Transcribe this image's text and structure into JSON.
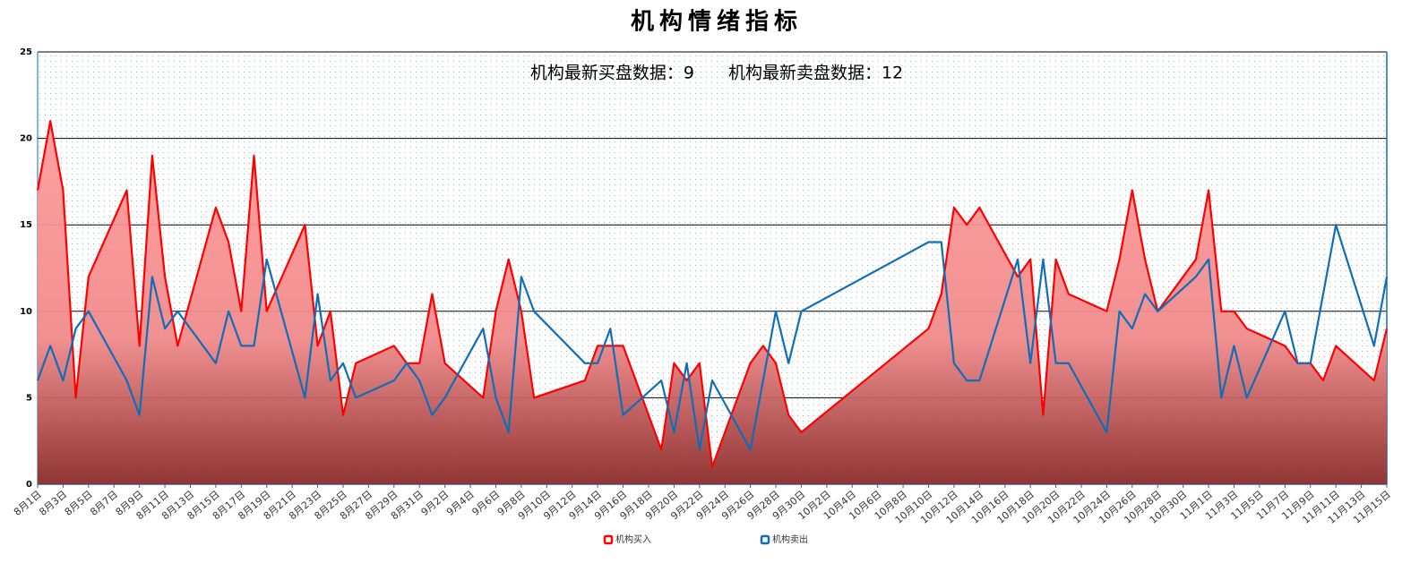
{
  "chart_data": {
    "type": "line",
    "title": "机构情绪指标",
    "subtitle": "机构最新买盘数据：9　　机构最新卖盘数据：12",
    "x": [
      "8月1日",
      "8月2日",
      "8月3日",
      "8月4日",
      "8月5日",
      "8月8日",
      "8月9日",
      "8月10日",
      "8月11日",
      "8月12日",
      "8月15日",
      "8月16日",
      "8月17日",
      "8月18日",
      "8月19日",
      "8月22日",
      "8月23日",
      "8月24日",
      "8月25日",
      "8月26日",
      "8月29日",
      "8月30日",
      "8月31日",
      "9月1日",
      "9月2日",
      "9月5日",
      "9月6日",
      "9月7日",
      "9月8日",
      "9月9日",
      "9月13日",
      "9月14日",
      "9月15日",
      "9月16日",
      "9月19日",
      "9月20日",
      "9月21日",
      "9月22日",
      "9月23日",
      "9月26日",
      "9月27日",
      "9月28日",
      "9月29日",
      "9月30日",
      "10月10日",
      "10月11日",
      "10月12日",
      "10月13日",
      "10月14日",
      "10月17日",
      "10月18日",
      "10月19日",
      "10月20日",
      "10月21日",
      "10月24日",
      "10月25日",
      "10月26日",
      "10月27日",
      "10月28日",
      "10月31日",
      "11月1日",
      "11月2日",
      "11月3日",
      "11月4日",
      "11月7日",
      "11月8日",
      "11月9日",
      "11月10日",
      "11月11日",
      "11月14日",
      "11月15日"
    ],
    "series": [
      {
        "name": "机构买入",
        "color": "#ff0000",
        "area": true,
        "values": [
          17,
          21,
          17,
          5,
          12,
          17,
          8,
          19,
          12,
          8,
          16,
          14,
          10,
          19,
          10,
          15,
          8,
          10,
          4,
          7,
          8,
          7,
          7,
          11,
          7,
          5,
          10,
          13,
          10,
          5,
          6,
          8,
          8,
          8,
          2,
          7,
          6,
          7,
          1,
          7,
          8,
          7,
          4,
          3,
          9,
          11,
          16,
          15,
          16,
          12,
          13,
          4,
          13,
          11,
          10,
          13,
          17,
          13,
          10,
          13,
          17,
          10,
          10,
          9,
          8,
          7,
          7,
          6,
          8,
          6,
          9
        ]
      },
      {
        "name": "机构卖出",
        "color": "#0e6eb8",
        "area": false,
        "values": [
          6,
          8,
          6,
          9,
          10,
          6,
          4,
          12,
          9,
          10,
          7,
          10,
          8,
          8,
          13,
          5,
          11,
          6,
          7,
          5,
          6,
          7,
          6,
          4,
          5,
          9,
          5,
          3,
          12,
          10,
          7,
          7,
          9,
          4,
          6,
          3,
          7,
          2,
          6,
          2,
          6,
          10,
          7,
          10,
          14,
          14,
          7,
          6,
          6,
          13,
          7,
          13,
          7,
          7,
          3,
          10,
          9,
          11,
          10,
          12,
          13,
          5,
          8,
          5,
          10,
          7,
          7,
          11,
          15,
          8,
          12
        ]
      }
    ],
    "xlim": [
      "8月1日",
      "11月15日"
    ],
    "xticks": [
      "8月1日",
      "8月3日",
      "8月5日",
      "8月7日",
      "8月9日",
      "8月11日",
      "8月13日",
      "8月15日",
      "8月17日",
      "8月19日",
      "8月21日",
      "8月23日",
      "8月25日",
      "8月27日",
      "8月29日",
      "8月31日",
      "9月2日",
      "9月4日",
      "9月6日",
      "9月8日",
      "9月10日",
      "9月12日",
      "9月14日",
      "9月16日",
      "9月18日",
      "9月20日",
      "9月22日",
      "9月24日",
      "9月26日",
      "9月28日",
      "9月30日",
      "10月2日",
      "10月4日",
      "10月6日",
      "10月8日",
      "10月10日",
      "10月12日",
      "10月14日",
      "10月16日",
      "10月18日",
      "10月20日",
      "10月22日",
      "10月24日",
      "10月26日",
      "10月28日",
      "10月30日",
      "11月1日",
      "11月3日",
      "11月5日",
      "11月7日",
      "11月9日",
      "11月11日",
      "11月13日",
      "11月15日"
    ],
    "ylim": [
      0,
      25
    ],
    "yticks": [
      0,
      5,
      10,
      15,
      20,
      25
    ],
    "grid": true
  }
}
